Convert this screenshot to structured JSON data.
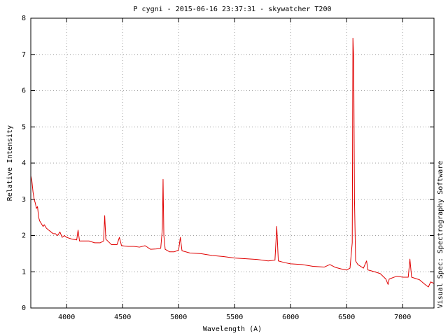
{
  "chart_data": {
    "type": "line",
    "title": "P cygni - 2015-06-16 23:37:31 - skywatcher T200",
    "x_label": "Wavelength (A)",
    "y_label": "Relative Intensity",
    "credit": "Visual Spec: Spectrography Software",
    "color": "#e00000",
    "grid": true,
    "xlim": [
      3680,
      7280
    ],
    "ylim": [
      0,
      8
    ],
    "xticks": [
      4000,
      4500,
      5000,
      5500,
      6000,
      6500,
      7000
    ],
    "yticks": [
      0,
      1,
      2,
      3,
      4,
      5,
      6,
      7,
      8
    ],
    "x": [
      3680,
      3690,
      3700,
      3710,
      3720,
      3730,
      3740,
      3750,
      3760,
      3770,
      3780,
      3790,
      3800,
      3820,
      3840,
      3860,
      3880,
      3900,
      3920,
      3940,
      3960,
      3980,
      4000,
      4050,
      4090,
      4102,
      4115,
      4150,
      4200,
      4250,
      4300,
      4330,
      4340,
      4350,
      4400,
      4450,
      4471,
      4490,
      4550,
      4600,
      4650,
      4700,
      4750,
      4800,
      4840,
      4855,
      4861,
      4868,
      4880,
      4920,
      4960,
      5000,
      5015,
      5030,
      5100,
      5200,
      5300,
      5400,
      5500,
      5600,
      5700,
      5800,
      5860,
      5876,
      5890,
      5950,
      6000,
      6100,
      6200,
      6300,
      6350,
      6400,
      6450,
      6500,
      6530,
      6550,
      6556,
      6563,
      6570,
      6580,
      6600,
      6650,
      6678,
      6690,
      6750,
      6800,
      6850,
      6870,
      6880,
      6950,
      7000,
      7050,
      7065,
      7080,
      7150,
      7200,
      7230,
      7250,
      7280
    ],
    "values": [
      3.65,
      3.5,
      3.2,
      3.0,
      2.9,
      2.75,
      2.8,
      2.5,
      2.4,
      2.35,
      2.3,
      2.25,
      2.3,
      2.2,
      2.15,
      2.1,
      2.05,
      2.05,
      2.0,
      2.1,
      1.95,
      2.0,
      1.95,
      1.9,
      1.88,
      2.15,
      1.85,
      1.85,
      1.85,
      1.8,
      1.8,
      1.85,
      2.55,
      1.9,
      1.75,
      1.75,
      1.95,
      1.72,
      1.7,
      1.7,
      1.68,
      1.72,
      1.62,
      1.63,
      1.65,
      2.2,
      3.55,
      2.0,
      1.62,
      1.55,
      1.55,
      1.6,
      1.95,
      1.58,
      1.52,
      1.5,
      1.45,
      1.42,
      1.38,
      1.36,
      1.34,
      1.3,
      1.32,
      2.25,
      1.3,
      1.25,
      1.22,
      1.2,
      1.15,
      1.13,
      1.2,
      1.12,
      1.08,
      1.05,
      1.1,
      1.8,
      7.45,
      6.9,
      3.0,
      1.3,
      1.2,
      1.1,
      1.3,
      1.05,
      1.0,
      0.95,
      0.8,
      0.65,
      0.8,
      0.88,
      0.85,
      0.85,
      1.35,
      0.85,
      0.78,
      0.65,
      0.58,
      0.72,
      0.68
    ]
  }
}
